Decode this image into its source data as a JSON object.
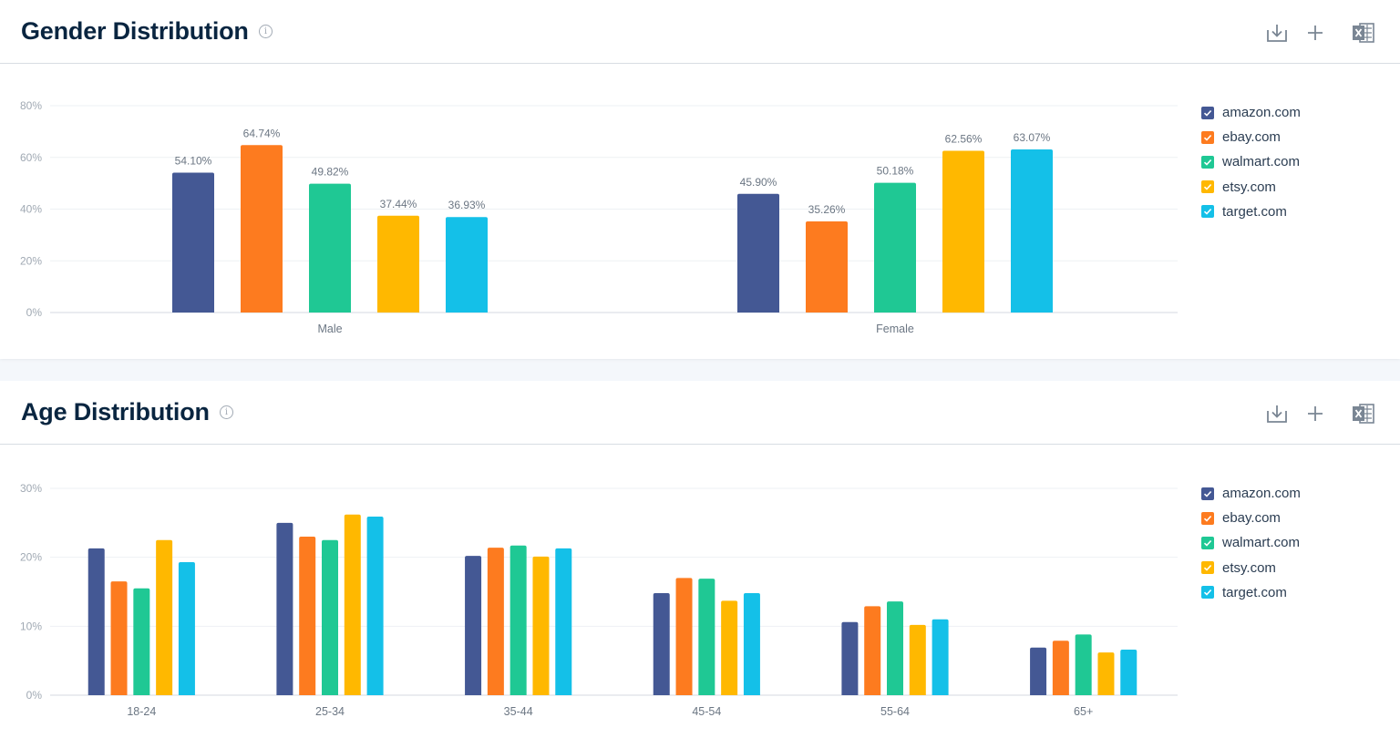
{
  "colors": {
    "amazon": "#445894",
    "ebay": "#fd7b1f",
    "walmart": "#1fc894",
    "etsy": "#ffb800",
    "target": "#14c0e8"
  },
  "gender_section": {
    "title": "Gender Distribution",
    "info_icon": "info-icon",
    "toolbar": [
      {
        "name": "download-icon",
        "label": "Download"
      },
      {
        "name": "plus-icon",
        "label": "Add"
      },
      {
        "name": "excel-icon",
        "label": "Export to Excel"
      }
    ],
    "legend": [
      {
        "label": "amazon.com",
        "key": "amazon",
        "checked": true
      },
      {
        "label": "ebay.com",
        "key": "ebay",
        "checked": true
      },
      {
        "label": "walmart.com",
        "key": "walmart",
        "checked": true
      },
      {
        "label": "etsy.com",
        "key": "etsy",
        "checked": true
      },
      {
        "label": "target.com",
        "key": "target",
        "checked": true
      }
    ]
  },
  "age_section": {
    "title": "Age Distribution",
    "info_icon": "info-icon",
    "toolbar": [
      {
        "name": "download-icon",
        "label": "Download"
      },
      {
        "name": "plus-icon",
        "label": "Add"
      },
      {
        "name": "excel-icon",
        "label": "Export to Excel"
      }
    ],
    "legend": [
      {
        "label": "amazon.com",
        "key": "amazon",
        "checked": true
      },
      {
        "label": "ebay.com",
        "key": "ebay",
        "checked": true
      },
      {
        "label": "walmart.com",
        "key": "walmart",
        "checked": true
      },
      {
        "label": "etsy.com",
        "key": "etsy",
        "checked": true
      },
      {
        "label": "target.com",
        "key": "target",
        "checked": true
      }
    ]
  },
  "chart_data": [
    {
      "type": "bar",
      "title": "Gender Distribution",
      "xlabel": "",
      "ylabel": "",
      "ylim": [
        0,
        80
      ],
      "yticks": [
        "0%",
        "20%",
        "40%",
        "60%",
        "80%"
      ],
      "grid": true,
      "legend_position": "right",
      "data_labels": true,
      "categories": [
        "Male",
        "Female"
      ],
      "series": [
        {
          "name": "amazon.com",
          "values": [
            54.1,
            45.9
          ]
        },
        {
          "name": "ebay.com",
          "values": [
            64.74,
            35.26
          ]
        },
        {
          "name": "walmart.com",
          "values": [
            49.82,
            50.18
          ]
        },
        {
          "name": "etsy.com",
          "values": [
            37.44,
            62.56
          ]
        },
        {
          "name": "target.com",
          "values": [
            36.93,
            63.07
          ]
        }
      ]
    },
    {
      "type": "bar",
      "title": "Age Distribution",
      "xlabel": "",
      "ylabel": "",
      "ylim": [
        0,
        30
      ],
      "yticks": [
        "0%",
        "10%",
        "20%",
        "30%"
      ],
      "grid": true,
      "legend_position": "right",
      "data_labels": false,
      "categories": [
        "18-24",
        "25-34",
        "35-44",
        "45-54",
        "55-64",
        "65+"
      ],
      "series": [
        {
          "name": "amazon.com",
          "values": [
            21.3,
            25.0,
            20.2,
            14.8,
            10.6,
            6.9
          ]
        },
        {
          "name": "ebay.com",
          "values": [
            16.5,
            23.0,
            21.4,
            17.0,
            12.9,
            7.9
          ]
        },
        {
          "name": "walmart.com",
          "values": [
            15.5,
            22.5,
            21.7,
            16.9,
            13.6,
            8.8
          ]
        },
        {
          "name": "etsy.com",
          "values": [
            22.5,
            26.2,
            20.1,
            13.7,
            10.2,
            6.2
          ]
        },
        {
          "name": "target.com",
          "values": [
            19.3,
            25.9,
            21.3,
            14.8,
            11.0,
            6.6
          ]
        }
      ]
    }
  ]
}
